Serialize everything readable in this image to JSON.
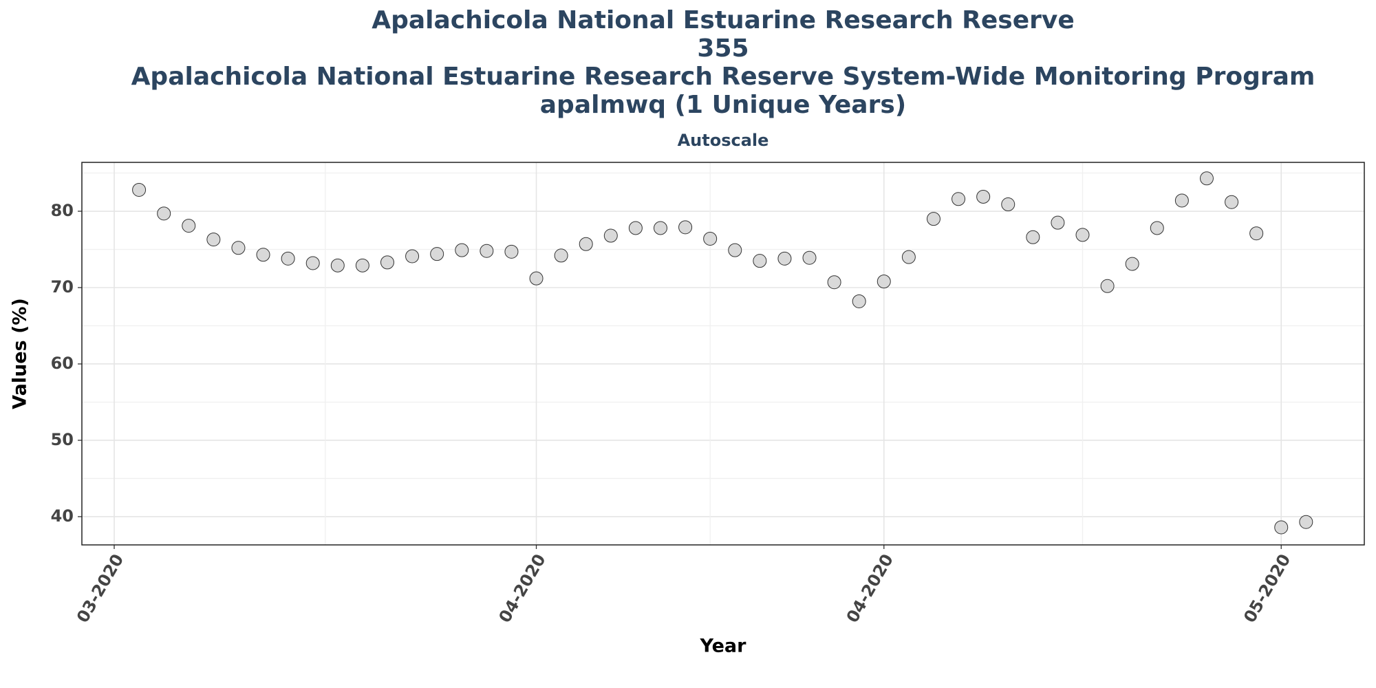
{
  "chart_data": {
    "type": "scatter",
    "title_lines": [
      "Apalachicola National Estuarine Research Reserve",
      "355",
      "Apalachicola National Estuarine Research Reserve System-Wide Monitoring Program",
      "apalmwq (1 Unique Years)"
    ],
    "subtitle": "Autoscale",
    "x_label": "Year",
    "y_label": "Values (%)",
    "categories": [
      "03-2020",
      null,
      null,
      null,
      null,
      null,
      null,
      null,
      null,
      null,
      null,
      null,
      null,
      null,
      null,
      null,
      null,
      "04-2020",
      null,
      null,
      null,
      null,
      null,
      null,
      null,
      null,
      null,
      null,
      null,
      null,
      null,
      "04-2020",
      null,
      null,
      null,
      null,
      null,
      null,
      null,
      null,
      null,
      null,
      null,
      null,
      null,
      null,
      null,
      "05-2020",
      null
    ],
    "values": [
      null,
      82.8,
      79.7,
      78.1,
      76.3,
      75.2,
      74.3,
      73.8,
      73.2,
      72.9,
      72.9,
      73.3,
      74.1,
      74.4,
      74.9,
      74.8,
      74.7,
      71.2,
      74.2,
      75.7,
      76.8,
      77.8,
      77.8,
      77.9,
      76.4,
      74.9,
      73.5,
      73.8,
      73.9,
      70.7,
      68.2,
      70.8,
      74.0,
      79.0,
      81.6,
      81.9,
      80.9,
      76.6,
      78.5,
      76.9,
      70.2,
      73.1,
      77.8,
      81.4,
      84.3,
      81.2,
      77.1,
      38.6,
      39.3
    ],
    "color": "#d9d9d9",
    "ylim": [
      36.3,
      86.4
    ],
    "yticks": [
      40,
      50,
      60,
      70,
      80
    ],
    "grid": true
  }
}
